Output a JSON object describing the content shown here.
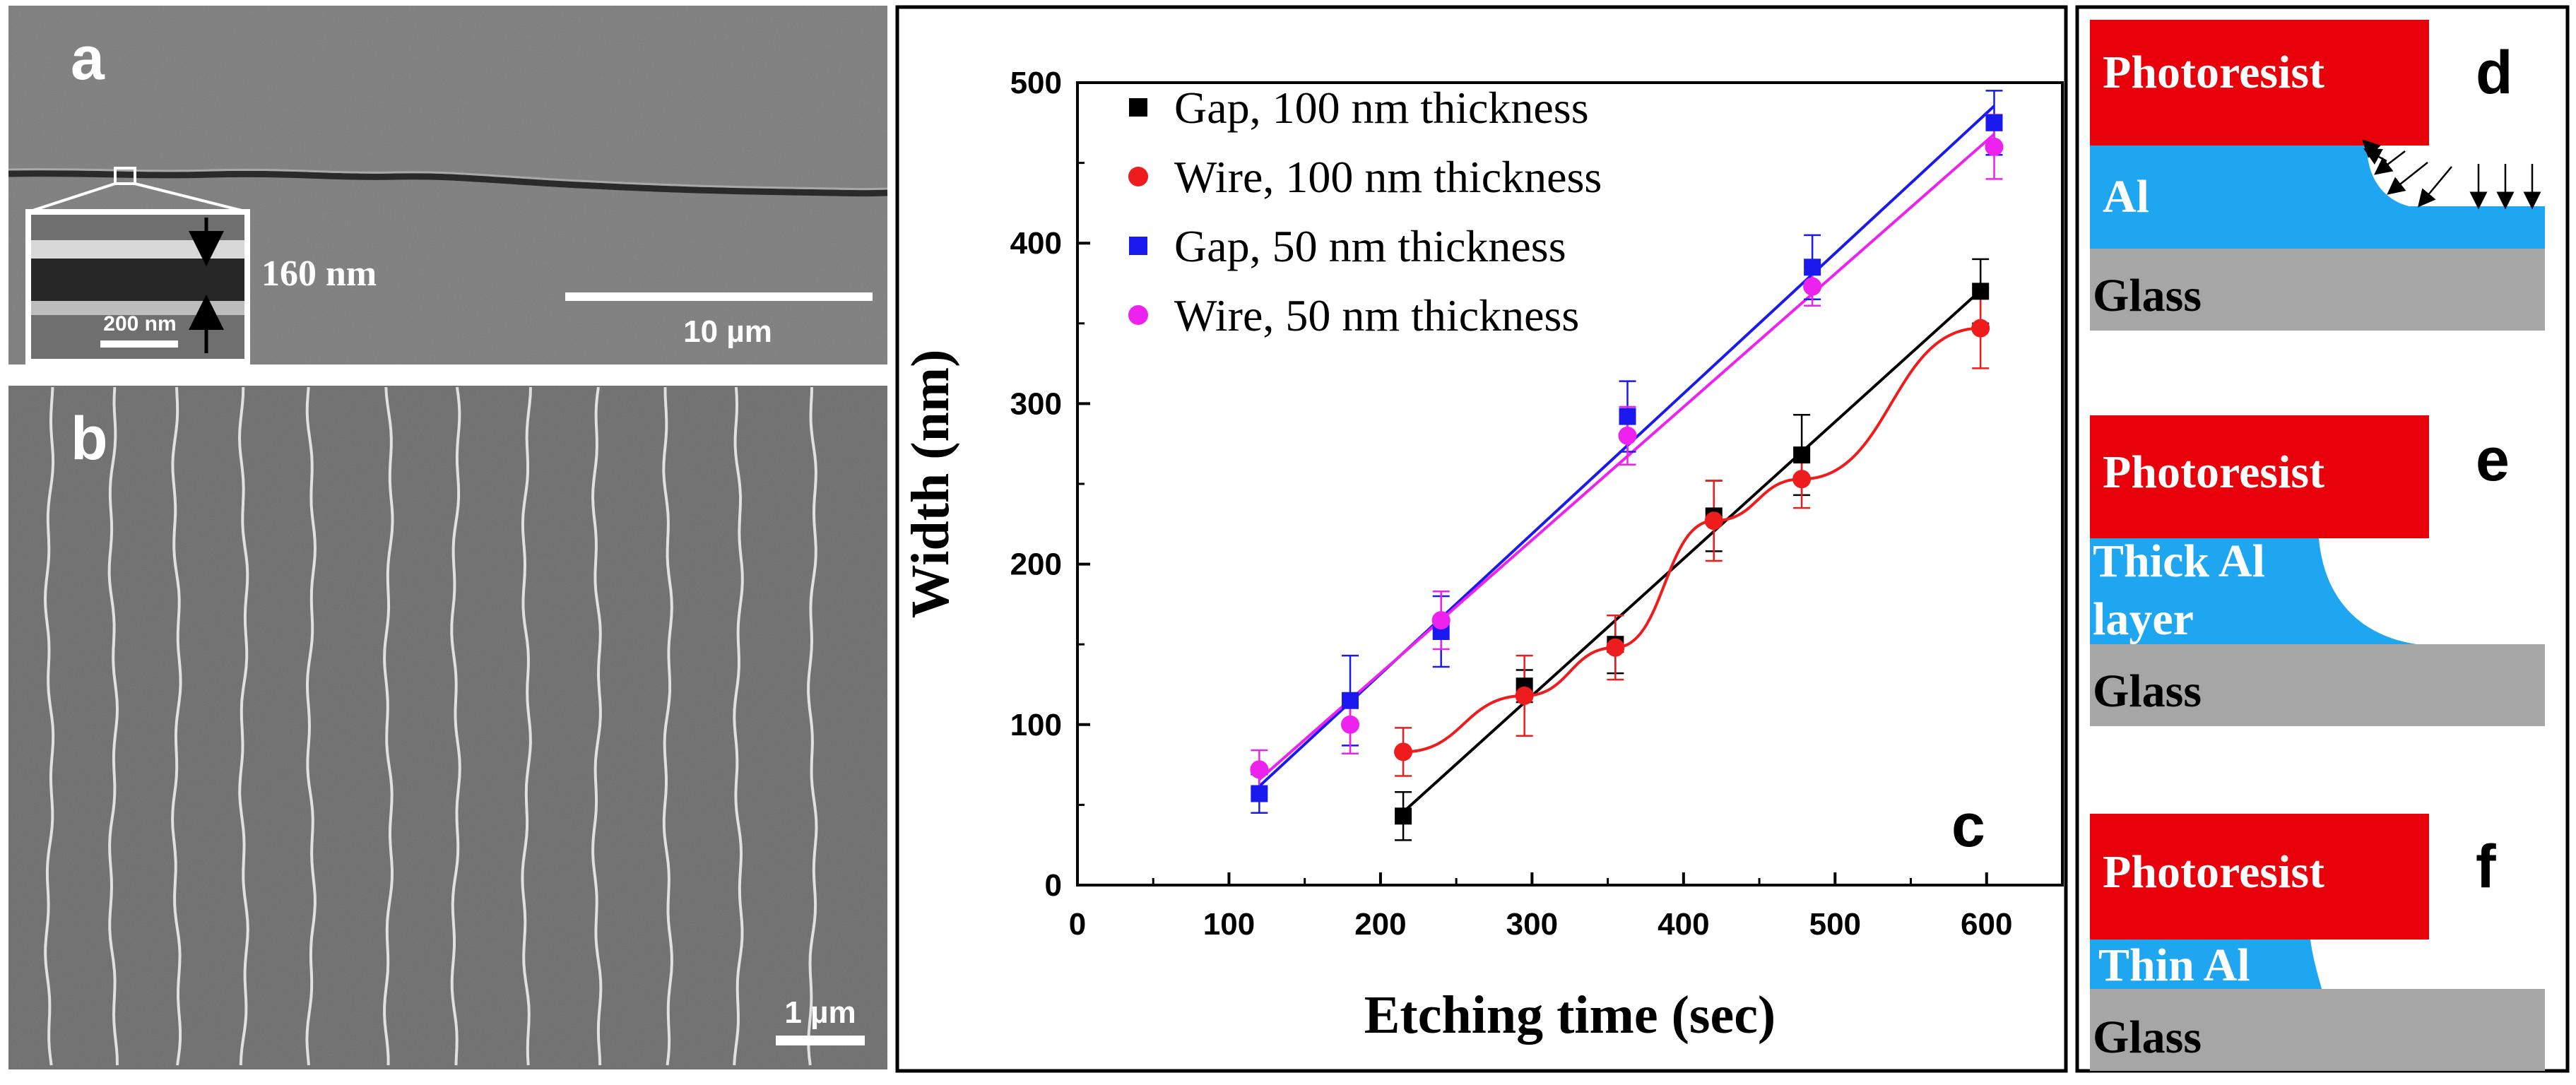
{
  "panels": {
    "a": {
      "label": "a",
      "inset_scale": "200 nm",
      "gap_width": "160 nm",
      "scale_bar": "10 µm"
    },
    "b": {
      "label": "b",
      "scale_bar": "1 µm"
    },
    "c": {
      "label": "c"
    },
    "d": {
      "label": "d",
      "photoresist": "Photoresist",
      "metal": "Al",
      "substrate": "Glass"
    },
    "e": {
      "label": "e",
      "photoresist": "Photoresist",
      "metal_line1": "Thick Al",
      "metal_line2": "layer",
      "substrate": "Glass"
    },
    "f": {
      "label": "f",
      "photoresist": "Photoresist",
      "metal": "Thin Al",
      "substrate": "Glass"
    }
  },
  "colors": {
    "photoresist": "#e8000b",
    "aluminum": "#1ea7f0",
    "glass": "#a6a6a6",
    "sem_bg": "#7c7c7c",
    "gap100": "#000000",
    "wire100": "#ee1c1c",
    "gap50": "#1a1aee",
    "wire50": "#ee22ee"
  },
  "chart_data": {
    "type": "scatter",
    "title": "",
    "xlabel": "Etching time (sec)",
    "ylabel": "Width (nm)",
    "xlim": [
      0,
      650
    ],
    "ylim": [
      0,
      500
    ],
    "xticks": [
      0,
      100,
      200,
      300,
      400,
      500,
      600
    ],
    "yticks": [
      0,
      100,
      200,
      300,
      400,
      500
    ],
    "legend_position": "top-left",
    "series": [
      {
        "name": "Gap, 100 nm thickness",
        "marker": "square",
        "color": "#000000",
        "x": [
          215,
          295,
          355,
          420,
          478,
          596
        ],
        "y": [
          43,
          124,
          150,
          230,
          268,
          370
        ],
        "err": [
          15,
          10,
          18,
          22,
          25,
          20
        ],
        "fit": "linear"
      },
      {
        "name": "Wire, 100 nm thickness",
        "marker": "circle",
        "color": "#ee1c1c",
        "x": [
          215,
          295,
          355,
          420,
          478,
          596
        ],
        "y": [
          83,
          118,
          148,
          227,
          253,
          347
        ],
        "err": [
          15,
          25,
          20,
          25,
          18,
          25
        ],
        "fit": "curve"
      },
      {
        "name": "Gap, 50 nm thickness",
        "marker": "square",
        "color": "#1a1aee",
        "x": [
          120,
          180,
          240,
          363,
          485,
          605
        ],
        "y": [
          57,
          115,
          158,
          292,
          385,
          475
        ],
        "err": [
          12,
          28,
          22,
          22,
          20,
          20
        ],
        "fit": "linear"
      },
      {
        "name": "Wire, 50 nm thickness",
        "marker": "circle",
        "color": "#ee22ee",
        "x": [
          120,
          180,
          240,
          363,
          485,
          605
        ],
        "y": [
          72,
          100,
          165,
          280,
          373,
          460
        ],
        "err": [
          12,
          18,
          18,
          18,
          12,
          20
        ],
        "fit": "linear"
      }
    ]
  }
}
